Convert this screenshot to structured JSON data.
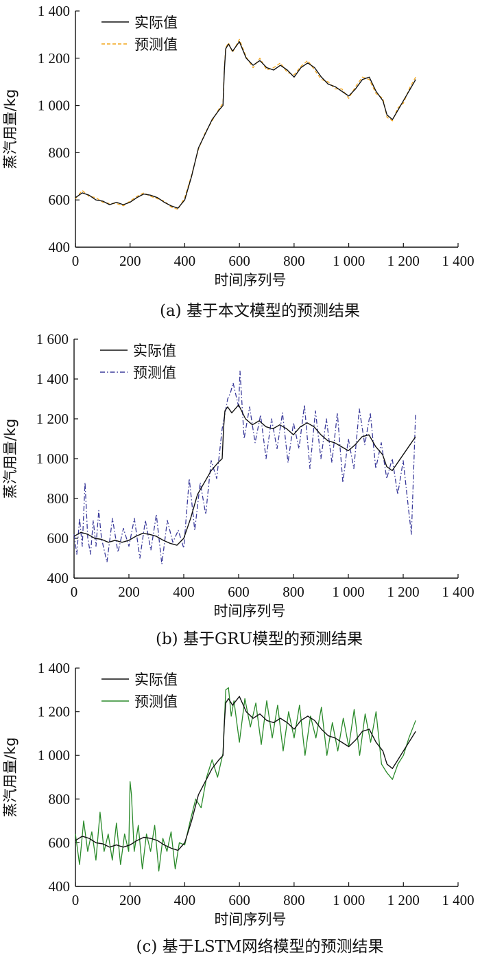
{
  "chart_data": [
    {
      "type": "line",
      "caption": "(a)  基于本文模型的预测结果",
      "xlabel": "时间序列号",
      "ylabel": "蒸汽用量/kg",
      "xlim": [
        0,
        1400
      ],
      "ylim": [
        400,
        1400
      ],
      "xticks": [
        0,
        200,
        400,
        600,
        800,
        1000,
        1200,
        1400
      ],
      "xtick_labels": [
        "0",
        "200",
        "400",
        "600",
        "800",
        "1 000",
        "1 200",
        "1 400"
      ],
      "yticks": [
        400,
        600,
        800,
        1000,
        1200,
        1400
      ],
      "ytick_labels": [
        "400",
        "600",
        "800",
        "1 000",
        "1 200",
        "1 400"
      ],
      "grid": false,
      "legend_position": "top-left",
      "series": [
        {
          "name": "实际值",
          "color": "#111111",
          "style": "solid",
          "x": [
            0,
            25,
            50,
            75,
            100,
            125,
            150,
            175,
            200,
            225,
            250,
            275,
            300,
            325,
            350,
            375,
            400,
            425,
            450,
            475,
            500,
            525,
            540,
            545,
            550,
            560,
            575,
            600,
            625,
            650,
            675,
            700,
            725,
            750,
            775,
            800,
            825,
            850,
            875,
            900,
            925,
            950,
            975,
            1000,
            1025,
            1050,
            1075,
            1100,
            1125,
            1140,
            1160,
            1180,
            1200,
            1225,
            1245
          ],
          "values": [
            610,
            630,
            620,
            600,
            595,
            580,
            590,
            580,
            590,
            610,
            625,
            620,
            610,
            590,
            575,
            565,
            600,
            700,
            820,
            880,
            940,
            980,
            1000,
            1150,
            1240,
            1260,
            1230,
            1270,
            1200,
            1170,
            1190,
            1160,
            1150,
            1170,
            1150,
            1120,
            1160,
            1180,
            1160,
            1120,
            1090,
            1080,
            1060,
            1040,
            1070,
            1110,
            1120,
            1060,
            1020,
            960,
            940,
            980,
            1020,
            1070,
            1110
          ]
        },
        {
          "name": "预测值",
          "color": "#f2a51c",
          "style": "dashed",
          "x": [
            0,
            25,
            50,
            75,
            100,
            125,
            150,
            175,
            200,
            225,
            250,
            275,
            300,
            325,
            350,
            375,
            400,
            425,
            450,
            475,
            500,
            525,
            540,
            545,
            550,
            560,
            575,
            600,
            625,
            650,
            675,
            700,
            725,
            750,
            775,
            800,
            825,
            850,
            875,
            900,
            925,
            950,
            975,
            1000,
            1025,
            1050,
            1075,
            1100,
            1125,
            1140,
            1160,
            1180,
            1200,
            1225,
            1245
          ],
          "values": [
            605,
            640,
            615,
            610,
            590,
            585,
            585,
            575,
            595,
            615,
            630,
            615,
            605,
            595,
            570,
            560,
            610,
            705,
            815,
            885,
            935,
            985,
            1010,
            1160,
            1245,
            1265,
            1225,
            1280,
            1205,
            1160,
            1200,
            1150,
            1160,
            1180,
            1140,
            1130,
            1165,
            1190,
            1150,
            1110,
            1100,
            1070,
            1070,
            1030,
            1080,
            1120,
            1110,
            1050,
            1030,
            950,
            935,
            990,
            1010,
            1080,
            1120
          ]
        }
      ]
    },
    {
      "type": "line",
      "caption": "(b)  基于GRU模型的预测结果",
      "xlabel": "时间序列号",
      "ylabel": "蒸汽用量/kg",
      "xlim": [
        0,
        1400
      ],
      "ylim": [
        400,
        1600
      ],
      "xticks": [
        0,
        200,
        400,
        600,
        800,
        1000,
        1200,
        1400
      ],
      "xtick_labels": [
        "0",
        "200",
        "400",
        "600",
        "800",
        "1 000",
        "1 200",
        "1 400"
      ],
      "yticks": [
        400,
        600,
        800,
        1000,
        1200,
        1400,
        1600
      ],
      "ytick_labels": [
        "400",
        "600",
        "800",
        "1 000",
        "1 200",
        "1 400",
        "1 600"
      ],
      "grid": false,
      "legend_position": "top-left",
      "series": [
        {
          "name": "实际值",
          "color": "#111111",
          "style": "solid",
          "x": [
            0,
            25,
            50,
            75,
            100,
            125,
            150,
            175,
            200,
            225,
            250,
            275,
            300,
            325,
            350,
            375,
            400,
            425,
            450,
            475,
            500,
            525,
            540,
            545,
            550,
            560,
            575,
            600,
            625,
            650,
            675,
            700,
            725,
            750,
            775,
            800,
            825,
            850,
            875,
            900,
            925,
            950,
            975,
            1000,
            1025,
            1050,
            1075,
            1100,
            1125,
            1140,
            1160,
            1180,
            1200,
            1225,
            1245
          ],
          "values": [
            610,
            630,
            620,
            600,
            595,
            580,
            590,
            580,
            590,
            610,
            625,
            620,
            610,
            590,
            575,
            565,
            600,
            700,
            820,
            880,
            940,
            980,
            1000,
            1150,
            1240,
            1260,
            1230,
            1270,
            1200,
            1170,
            1190,
            1160,
            1150,
            1170,
            1150,
            1120,
            1160,
            1180,
            1160,
            1120,
            1090,
            1080,
            1060,
            1040,
            1070,
            1110,
            1120,
            1060,
            1020,
            960,
            940,
            980,
            1020,
            1070,
            1110
          ]
        },
        {
          "name": "预测值",
          "color": "#3a3a9a",
          "style": "dashdot",
          "x": [
            0,
            10,
            20,
            30,
            40,
            50,
            60,
            70,
            80,
            90,
            100,
            120,
            140,
            160,
            180,
            200,
            220,
            240,
            260,
            280,
            300,
            320,
            340,
            360,
            380,
            400,
            420,
            440,
            460,
            480,
            500,
            520,
            540,
            560,
            570,
            580,
            600,
            605,
            620,
            640,
            660,
            680,
            700,
            720,
            740,
            760,
            780,
            800,
            820,
            840,
            860,
            880,
            900,
            920,
            940,
            960,
            980,
            1000,
            1020,
            1040,
            1060,
            1080,
            1100,
            1120,
            1140,
            1160,
            1180,
            1200,
            1220,
            1230,
            1245
          ],
          "values": [
            620,
            520,
            700,
            560,
            880,
            600,
            520,
            690,
            560,
            740,
            600,
            480,
            700,
            530,
            650,
            560,
            700,
            500,
            690,
            540,
            720,
            470,
            690,
            580,
            640,
            550,
            900,
            640,
            880,
            720,
            990,
            900,
            1150,
            1300,
            1330,
            1380,
            1260,
            1440,
            1100,
            1260,
            1080,
            1220,
            1000,
            1200,
            1050,
            1230,
            980,
            1180,
            1050,
            1270,
            950,
            1240,
            1000,
            1200,
            980,
            1230,
            880,
            1100,
            950,
            1250,
            1070,
            1230,
            950,
            1080,
            900,
            1000,
            820,
            990,
            740,
            620,
            1220
          ]
        }
      ]
    },
    {
      "type": "line",
      "caption": "(c)  基于LSTM网络模型的预测结果",
      "xlabel": "时间序列号",
      "ylabel": "蒸汽用量/kg",
      "xlim": [
        0,
        1400
      ],
      "ylim": [
        400,
        1400
      ],
      "xticks": [
        0,
        200,
        400,
        600,
        800,
        1000,
        1200,
        1400
      ],
      "xtick_labels": [
        "0",
        "200",
        "400",
        "600",
        "800",
        "1 000",
        "1 200",
        "1 400"
      ],
      "yticks": [
        400,
        600,
        800,
        1000,
        1200,
        1400
      ],
      "ytick_labels": [
        "400",
        "600",
        "800",
        "1 000",
        "1 200",
        "1 400"
      ],
      "grid": false,
      "legend_position": "top-left",
      "series": [
        {
          "name": "实际值",
          "color": "#111111",
          "style": "solid",
          "x": [
            0,
            25,
            50,
            75,
            100,
            125,
            150,
            175,
            200,
            225,
            250,
            275,
            300,
            325,
            350,
            375,
            400,
            425,
            450,
            475,
            500,
            525,
            540,
            545,
            550,
            560,
            575,
            600,
            625,
            650,
            675,
            700,
            725,
            750,
            775,
            800,
            825,
            850,
            875,
            900,
            925,
            950,
            975,
            1000,
            1025,
            1050,
            1075,
            1100,
            1125,
            1140,
            1160,
            1180,
            1200,
            1225,
            1245
          ],
          "values": [
            610,
            630,
            620,
            600,
            595,
            580,
            590,
            580,
            590,
            610,
            625,
            620,
            610,
            590,
            575,
            565,
            600,
            700,
            820,
            880,
            940,
            980,
            1000,
            1150,
            1240,
            1260,
            1230,
            1270,
            1200,
            1170,
            1190,
            1160,
            1150,
            1170,
            1150,
            1120,
            1160,
            1180,
            1160,
            1120,
            1090,
            1080,
            1060,
            1040,
            1070,
            1110,
            1120,
            1060,
            1020,
            960,
            940,
            980,
            1020,
            1070,
            1110
          ]
        },
        {
          "name": "预测值",
          "color": "#2a8a2a",
          "style": "solid",
          "x": [
            0,
            15,
            30,
            45,
            60,
            75,
            90,
            105,
            120,
            135,
            150,
            165,
            180,
            195,
            200,
            205,
            215,
            230,
            245,
            260,
            275,
            290,
            305,
            320,
            335,
            350,
            365,
            380,
            400,
            420,
            440,
            460,
            480,
            500,
            520,
            540,
            550,
            560,
            570,
            580,
            600,
            620,
            640,
            660,
            680,
            700,
            720,
            740,
            760,
            780,
            800,
            820,
            840,
            860,
            880,
            900,
            920,
            940,
            960,
            980,
            1000,
            1020,
            1040,
            1060,
            1080,
            1100,
            1120,
            1140,
            1160,
            1180,
            1200,
            1220,
            1245
          ],
          "values": [
            640,
            500,
            700,
            560,
            650,
            520,
            740,
            560,
            640,
            520,
            690,
            500,
            640,
            560,
            880,
            820,
            560,
            680,
            480,
            640,
            560,
            680,
            470,
            620,
            560,
            650,
            480,
            600,
            590,
            700,
            800,
            760,
            900,
            980,
            900,
            1010,
            1300,
            1310,
            1180,
            1250,
            1060,
            1260,
            1130,
            1240,
            1050,
            1250,
            1080,
            1230,
            1020,
            1200,
            1080,
            1230,
            1000,
            1180,
            1080,
            1220,
            1000,
            1150,
            1020,
            1170,
            1040,
            1210,
            1000,
            1190,
            1060,
            1200,
            960,
            920,
            890,
            960,
            1000,
            1080,
            1160
          ]
        }
      ]
    }
  ]
}
